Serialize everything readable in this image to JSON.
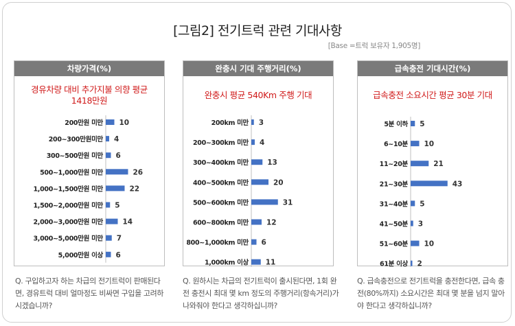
{
  "title": "[그림2] 전기트럭 관련 기대사항",
  "base_note": "[Base =트럭 보유자 1,905명]",
  "bar_color": "#4472c4",
  "header_color": "#7a7a7a",
  "highlight_color": "#d01a1a",
  "panels": [
    {
      "header": "차량가격(%)",
      "subtitle_lines": [
        "경유차량 대비 추가지불 의향 평균",
        "1418만원"
      ],
      "question": "Q. 구입하고자 하는 차급의 전기트럭이 판매된다면, 경유트럭 대비 얼마정도 비싸면 구입을 고려하시겠습니까?"
    },
    {
      "header": "완충시 기대 주행거리(%)",
      "subtitle_lines": [
        "완충시 평균 540Km 주행 기대"
      ],
      "question": "Q. 원하시는 차급의 전기트럭이 출시된다면, 1회 완전 충전시 최대 몇 km 정도의 주행거리(항속거리)가 나와줘야 한다고 생각하십니까?"
    },
    {
      "header": "급속충전 기대시간(%)",
      "subtitle_lines": [
        "급속충전 소요시간 평균 30분 기대"
      ],
      "question": "Q. 급속충전으로 전기트럭을 충전한다면, 급속 충전(80%까지) 소요시간은 최대 몇 분을 넘지 말아야 한다고 생각하십니까?"
    }
  ],
  "chart_data": [
    {
      "type": "bar",
      "orientation": "horizontal",
      "title": "차량가격(%)",
      "categories": [
        "200만원 미만",
        "200~300만원미만",
        "300~500만원 미만",
        "500~1,000만원 미만",
        "1,000~1,500만원 미만",
        "1,500~2,000만원 미만",
        "2,000~3,000만원 미만",
        "3,000~5,000만원 미만",
        "5,000만원 이상"
      ],
      "values": [
        10,
        4,
        6,
        26,
        22,
        5,
        14,
        7,
        6
      ],
      "xlim": [
        0,
        43
      ]
    },
    {
      "type": "bar",
      "orientation": "horizontal",
      "title": "완충시 기대 주행거리(%)",
      "categories": [
        "200km 미만",
        "200~300km 미만",
        "300~400km 미만",
        "400~500km 미만",
        "500~600km 미만",
        "600~800km 미만",
        "800~1,000km 미만",
        "1,000km 이상"
      ],
      "values": [
        3,
        4,
        13,
        20,
        31,
        12,
        6,
        11
      ],
      "xlim": [
        0,
        43
      ]
    },
    {
      "type": "bar",
      "orientation": "horizontal",
      "title": "급속충전 기대시간(%)",
      "categories": [
        "5분 이하",
        "6~10분",
        "11~20분",
        "21~30분",
        "31~40분",
        "41~50분",
        "51~60분",
        "61분 이상"
      ],
      "values": [
        5,
        10,
        21,
        43,
        5,
        3,
        10,
        2
      ],
      "xlim": [
        0,
        43
      ]
    }
  ]
}
